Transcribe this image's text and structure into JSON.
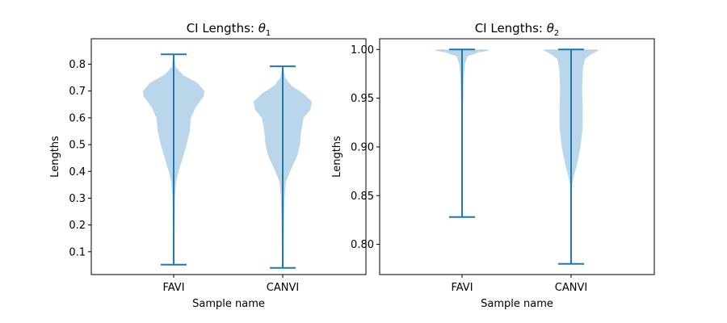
{
  "colors": {
    "violin_fill": "#bad6ea",
    "stat_line": "#1f77b4",
    "frame": "#000000"
  },
  "chart_data": [
    {
      "type": "violin",
      "title": "CI Lengths: ",
      "title_symbol": "θ",
      "title_subscript": "1",
      "xlabel": "Sample name",
      "ylabel": "Lengths",
      "categories": [
        "FAVI",
        "CANVI"
      ],
      "ylim": [
        0.015,
        0.895
      ],
      "yticks": [
        0.1,
        0.2,
        0.3,
        0.4,
        0.5,
        0.6,
        0.7,
        0.8
      ],
      "ytick_labels": [
        "0.1",
        "0.2",
        "0.3",
        "0.4",
        "0.5",
        "0.6",
        "0.7",
        "0.8"
      ],
      "series": [
        {
          "min": 0.052,
          "max": 0.837,
          "density": [
            [
              0.052,
              0.01
            ],
            [
              0.1,
              0.02
            ],
            [
              0.2,
              0.03
            ],
            [
              0.3,
              0.04
            ],
            [
              0.36,
              0.08
            ],
            [
              0.4,
              0.16
            ],
            [
              0.46,
              0.32
            ],
            [
              0.5,
              0.42
            ],
            [
              0.55,
              0.52
            ],
            [
              0.6,
              0.56
            ],
            [
              0.64,
              0.72
            ],
            [
              0.68,
              0.98
            ],
            [
              0.7,
              1.0
            ],
            [
              0.73,
              0.78
            ],
            [
              0.76,
              0.3
            ],
            [
              0.79,
              0.06
            ],
            [
              0.837,
              0.01
            ]
          ]
        },
        {
          "min": 0.04,
          "max": 0.792,
          "density": [
            [
              0.04,
              0.01
            ],
            [
              0.1,
              0.03
            ],
            [
              0.2,
              0.04
            ],
            [
              0.3,
              0.06
            ],
            [
              0.36,
              0.1
            ],
            [
              0.4,
              0.24
            ],
            [
              0.46,
              0.48
            ],
            [
              0.5,
              0.56
            ],
            [
              0.55,
              0.6
            ],
            [
              0.6,
              0.68
            ],
            [
              0.63,
              0.9
            ],
            [
              0.66,
              0.95
            ],
            [
              0.69,
              0.68
            ],
            [
              0.72,
              0.28
            ],
            [
              0.75,
              0.08
            ],
            [
              0.792,
              0.01
            ]
          ]
        }
      ]
    },
    {
      "type": "violin",
      "title": "CI Lengths: ",
      "title_symbol": "θ",
      "title_subscript": "2",
      "xlabel": "Sample name",
      "ylabel": "Lengths",
      "categories": [
        "FAVI",
        "CANVI"
      ],
      "ylim": [
        0.769,
        1.011
      ],
      "yticks": [
        0.8,
        0.85,
        0.9,
        0.95,
        1.0
      ],
      "ytick_labels": [
        "0.80",
        "0.85",
        "0.90",
        "0.95",
        "1.00"
      ],
      "series": [
        {
          "min": 0.828,
          "max": 1.0,
          "density": [
            [
              0.828,
              0.005
            ],
            [
              0.9,
              0.01
            ],
            [
              0.93,
              0.02
            ],
            [
              0.95,
              0.04
            ],
            [
              0.97,
              0.06
            ],
            [
              0.985,
              0.1
            ],
            [
              0.993,
              0.2
            ],
            [
              0.997,
              0.6
            ],
            [
              0.999,
              1.0
            ],
            [
              1.0,
              0.9
            ]
          ]
        },
        {
          "min": 0.78,
          "max": 1.0,
          "density": [
            [
              0.78,
              0.01
            ],
            [
              0.86,
              0.03
            ],
            [
              0.87,
              0.1
            ],
            [
              0.88,
              0.2
            ],
            [
              0.9,
              0.34
            ],
            [
              0.92,
              0.42
            ],
            [
              0.94,
              0.42
            ],
            [
              0.96,
              0.4
            ],
            [
              0.98,
              0.43
            ],
            [
              0.99,
              0.5
            ],
            [
              0.995,
              0.72
            ],
            [
              0.999,
              1.0
            ],
            [
              1.0,
              0.95
            ]
          ]
        }
      ]
    }
  ]
}
